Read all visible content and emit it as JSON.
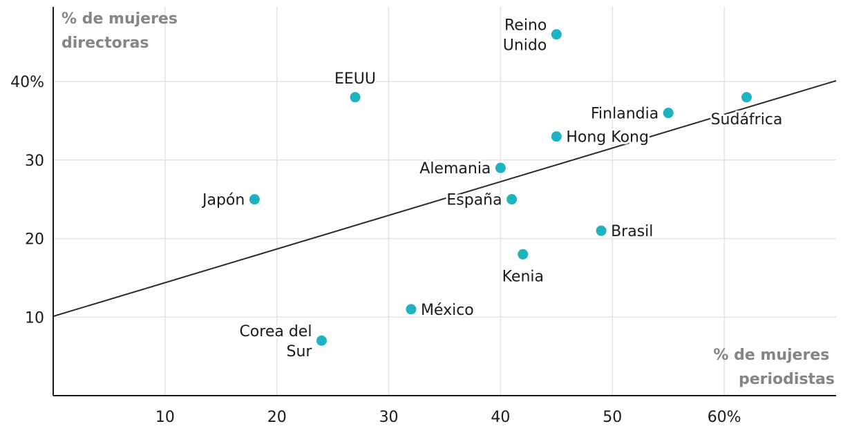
{
  "colors": {
    "point": "#1db3c0",
    "trend": "#2b2b2b",
    "grid": "#e3e3e3",
    "axis_title": "#858585"
  },
  "chart_data": {
    "type": "scatter",
    "title": "",
    "xlabel": [
      "% de mujeres",
      "periodistas"
    ],
    "ylabel": [
      "% de mujeres",
      "directoras"
    ],
    "xlim": [
      0,
      70
    ],
    "ylim": [
      0,
      49.5
    ],
    "xticks": [
      10,
      20,
      30,
      40,
      50,
      60
    ],
    "xtick_labels": [
      "10",
      "20",
      "30",
      "40",
      "50",
      "60%"
    ],
    "yticks": [
      10,
      20,
      30,
      40
    ],
    "ytick_labels": [
      "10",
      "20",
      "30",
      "40%"
    ],
    "grid": true,
    "trend_line": {
      "x": [
        0,
        70
      ],
      "y": [
        10.1,
        40.1
      ]
    },
    "points": [
      {
        "name": "Reino Unido",
        "label_lines": [
          "Reino",
          "Unido"
        ],
        "x": 45,
        "y": 46,
        "label_pos": "left"
      },
      {
        "name": "EEUU",
        "label_lines": [
          "EEUU"
        ],
        "x": 27,
        "y": 38,
        "label_pos": "above"
      },
      {
        "name": "Sudáfrica",
        "label_lines": [
          "Sudáfrica"
        ],
        "x": 62,
        "y": 38,
        "label_pos": "below"
      },
      {
        "name": "Finlandia",
        "label_lines": [
          "Finlandia"
        ],
        "x": 55,
        "y": 36,
        "label_pos": "left"
      },
      {
        "name": "Hong Kong",
        "label_lines": [
          "Hong Kong"
        ],
        "x": 45,
        "y": 33,
        "label_pos": "right"
      },
      {
        "name": "Alemania",
        "label_lines": [
          "Alemania"
        ],
        "x": 40,
        "y": 29,
        "label_pos": "left"
      },
      {
        "name": "Japón",
        "label_lines": [
          "Japón"
        ],
        "x": 18,
        "y": 25,
        "label_pos": "left"
      },
      {
        "name": "España",
        "label_lines": [
          "España"
        ],
        "x": 41,
        "y": 25,
        "label_pos": "left"
      },
      {
        "name": "Brasil",
        "label_lines": [
          "Brasil"
        ],
        "x": 49,
        "y": 21,
        "label_pos": "right"
      },
      {
        "name": "Kenia",
        "label_lines": [
          "Kenia"
        ],
        "x": 42,
        "y": 18,
        "label_pos": "below"
      },
      {
        "name": "México",
        "label_lines": [
          "México"
        ],
        "x": 32,
        "y": 11,
        "label_pos": "right"
      },
      {
        "name": "Corea del Sur",
        "label_lines": [
          "Corea del",
          "Sur"
        ],
        "x": 24,
        "y": 7,
        "label_pos": "left"
      }
    ]
  }
}
